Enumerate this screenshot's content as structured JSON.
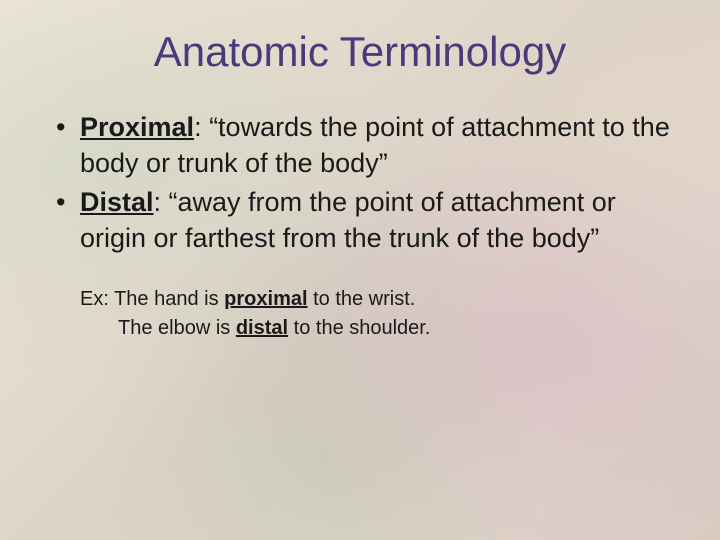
{
  "slide": {
    "title": "Anatomic Terminology",
    "title_color": "#4a3a7a",
    "title_fontsize": 42,
    "body_fontsize": 27,
    "example_fontsize": 20,
    "text_color": "#1a1a1a",
    "background_colors": [
      "#ede6d8",
      "#e6ddd0",
      "#dcd2c8",
      "#e0d5cc",
      "#d8ccc2"
    ],
    "bullets": [
      {
        "term": "Proximal",
        "definition": ": “towards the point of attachment to the body or trunk of the body”"
      },
      {
        "term": "Distal",
        "definition": ": “away from the point of attachment or origin or farthest from the trunk of the body”"
      }
    ],
    "examples": {
      "prefix": "Ex: ",
      "line1_before": "The hand is ",
      "line1_bold": "proximal",
      "line1_after": " to the wrist.",
      "line2_before": "The elbow is ",
      "line2_bold": "distal",
      "line2_after": " to the shoulder."
    }
  }
}
